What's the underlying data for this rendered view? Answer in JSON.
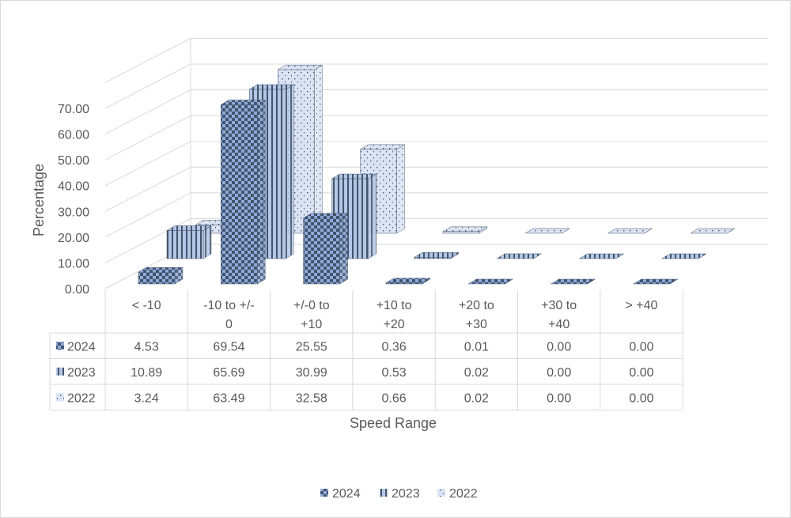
{
  "chart_data": {
    "type": "bar",
    "subtype": "3d-column-with-data-table",
    "title": "",
    "xlabel": "Speed Range",
    "ylabel": "Percentage",
    "ylim": [
      0,
      70
    ],
    "ytick_step": 10,
    "ytick_labels": [
      "0.00",
      "10.00",
      "20.00",
      "30.00",
      "40.00",
      "50.00",
      "60.00",
      "70.00"
    ],
    "grid": true,
    "legend_position": "bottom",
    "categories": [
      [
        "< -10"
      ],
      [
        "-10 to +/-",
        "0"
      ],
      [
        "+/-0 to",
        "+10"
      ],
      [
        "+10 to",
        "+20"
      ],
      [
        "+20 to",
        "+30"
      ],
      [
        "+30 to",
        "+40"
      ],
      [
        "> +40"
      ]
    ],
    "series": [
      {
        "name": "2024",
        "pattern": "checker",
        "color": "#44546a",
        "light": "#8faadc",
        "values": [
          4.53,
          69.54,
          25.55,
          0.36,
          0.01,
          0.0,
          0.0
        ],
        "labels": [
          "4.53",
          "69.54",
          "25.55",
          "0.36",
          "0.01",
          "0.00",
          "0.00"
        ]
      },
      {
        "name": "2023",
        "pattern": "vstripe",
        "color": "#44546a",
        "light": "#b4c7e7",
        "values": [
          10.89,
          65.69,
          30.99,
          0.53,
          0.02,
          0.0,
          0.0
        ],
        "labels": [
          "10.89",
          "65.69",
          "30.99",
          "0.53",
          "0.02",
          "0.00",
          "0.00"
        ]
      },
      {
        "name": "2022",
        "pattern": "dots",
        "color": "#44546a",
        "light": "#dae3f3",
        "values": [
          3.24,
          63.49,
          32.58,
          0.66,
          0.02,
          0.0,
          0.0
        ],
        "labels": [
          "3.24",
          "63.49",
          "32.58",
          "0.66",
          "0.02",
          "0.00",
          "0.00"
        ]
      }
    ]
  }
}
